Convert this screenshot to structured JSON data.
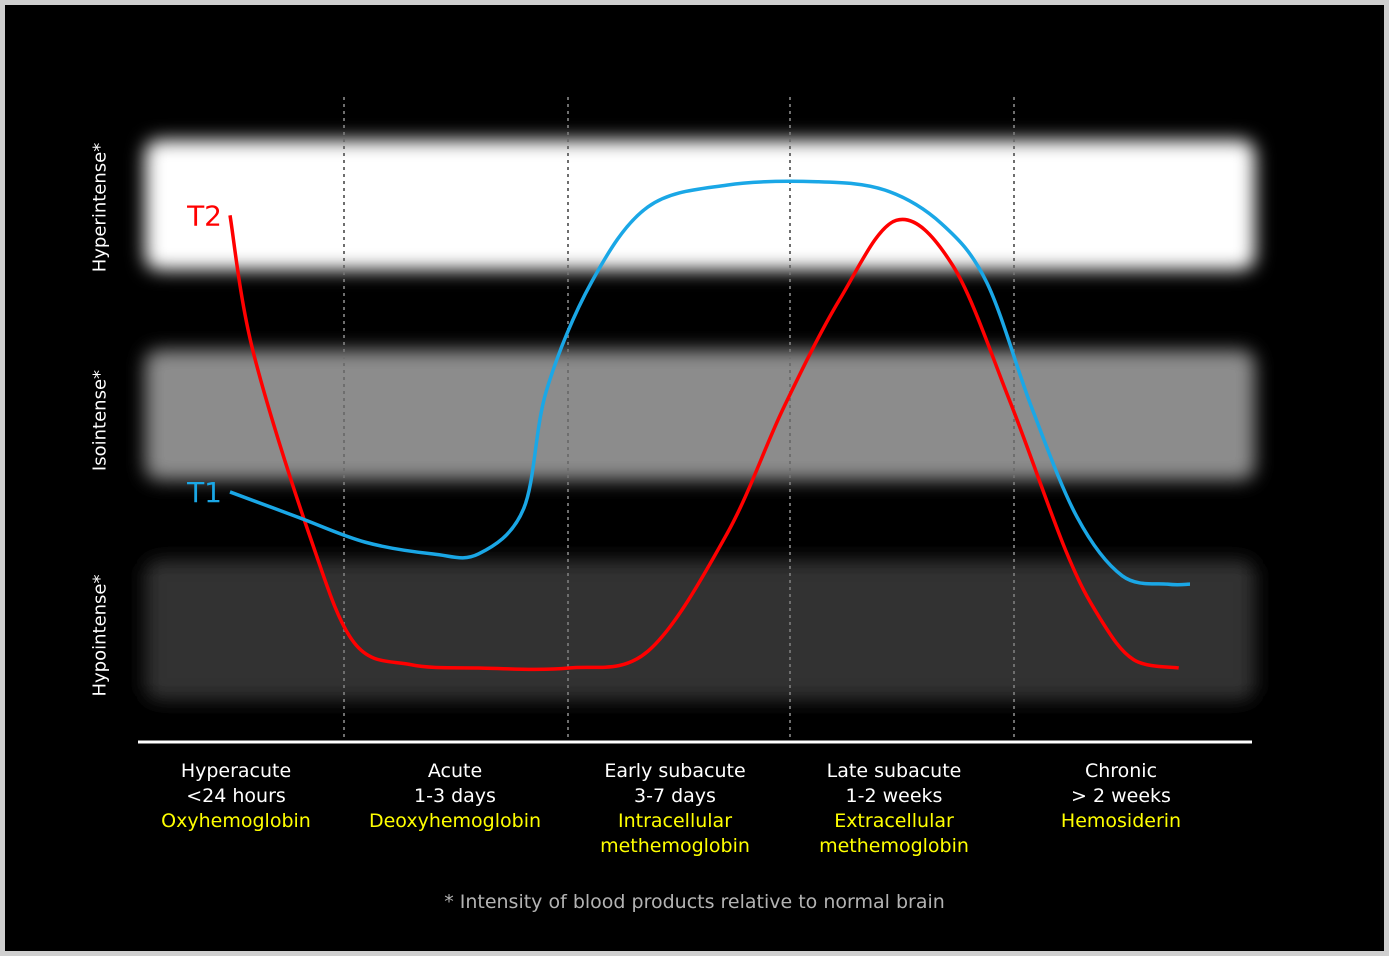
{
  "chart_data": {
    "type": "line",
    "y_levels": [
      "Hyperintense*",
      "Isointense*",
      "Hypointense*"
    ],
    "band_colors": [
      "#ffffff",
      "#8c8c8c",
      "#333333"
    ],
    "categories": [
      {
        "line1": "Hyperacute",
        "line2": "<24 hours",
        "line3": "Oxyhemoglobin"
      },
      {
        "line1": "Acute",
        "line2": "1-3 days",
        "line3": "Deoxyhemoglobin"
      },
      {
        "line1": "Early subacute",
        "line2": "3-7 days",
        "line3": "Intracellular methemoglobin"
      },
      {
        "line1": "Late subacute",
        "line2": "1-2 weeks",
        "line3": "Extracellular methemoglobin"
      },
      {
        "line1": "Chronic",
        "line2": "> 2 weeks",
        "line3": "Hemosiderin"
      }
    ],
    "series": [
      {
        "name": "T2",
        "color": "#ff0000",
        "points": [
          [
            0.0,
            2.7
          ],
          [
            0.1,
            1.9
          ],
          [
            0.35,
            0.8
          ],
          [
            0.55,
            0.15
          ],
          [
            0.8,
            0.02
          ],
          [
            1.1,
            0.0
          ],
          [
            1.5,
            0.0
          ],
          [
            1.85,
            0.1
          ],
          [
            2.2,
            0.8
          ],
          [
            2.45,
            1.55
          ],
          [
            2.7,
            2.2
          ],
          [
            2.95,
            2.67
          ],
          [
            3.2,
            2.4
          ],
          [
            3.45,
            1.6
          ],
          [
            3.7,
            0.7
          ],
          [
            3.85,
            0.3
          ],
          [
            4.0,
            0.05
          ],
          [
            4.2,
            0.0
          ]
        ]
      },
      {
        "name": "T1",
        "color": "#1aa7e6",
        "points": [
          [
            0.0,
            1.05
          ],
          [
            0.3,
            0.9
          ],
          [
            0.6,
            0.75
          ],
          [
            0.9,
            0.68
          ],
          [
            1.1,
            0.68
          ],
          [
            1.3,
            0.95
          ],
          [
            1.4,
            1.65
          ],
          [
            1.6,
            2.3
          ],
          [
            1.85,
            2.75
          ],
          [
            2.2,
            2.88
          ],
          [
            2.6,
            2.9
          ],
          [
            2.9,
            2.85
          ],
          [
            3.15,
            2.65
          ],
          [
            3.35,
            2.3
          ],
          [
            3.55,
            1.55
          ],
          [
            3.75,
            0.9
          ],
          [
            3.95,
            0.55
          ],
          [
            4.15,
            0.5
          ],
          [
            4.25,
            0.5
          ]
        ]
      }
    ]
  },
  "footnote": "* Intensity of blood products relative to normal brain"
}
